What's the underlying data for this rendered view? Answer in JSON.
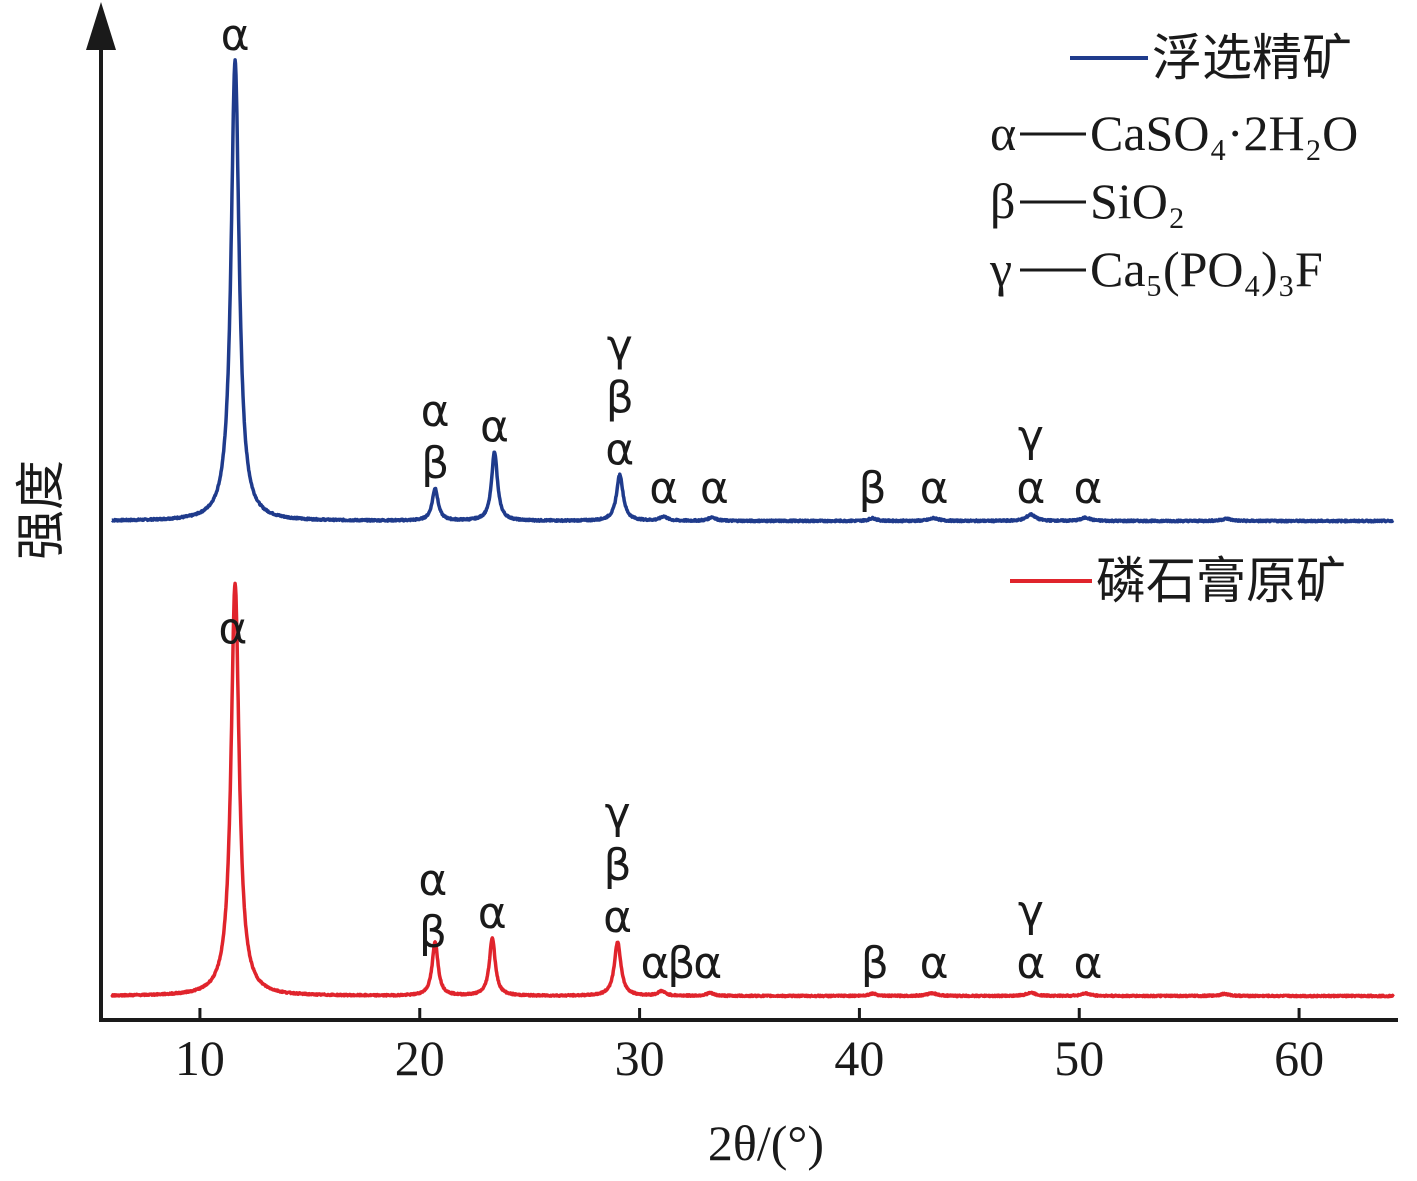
{
  "chart_data": {
    "type": "line",
    "xlabel": "2θ/(°)",
    "ylabel": "强度",
    "xlim": [
      5.5,
      64.5
    ],
    "xticks": [
      10,
      20,
      30,
      40,
      50,
      60
    ],
    "tick_labels": [
      "10",
      "20",
      "30",
      "40",
      "50",
      "60"
    ],
    "colors": {
      "flotation": "#1f3b8c",
      "raw": "#e0242c",
      "axis": "#1a1a1a"
    },
    "series": [
      {
        "name": "浮选精矿",
        "key": "flotation",
        "baseline": 0,
        "peaks": [
          {
            "x": 11.6,
            "y": 100,
            "w": 0.22
          },
          {
            "x": 20.7,
            "y": 7,
            "w": 0.16
          },
          {
            "x": 23.4,
            "y": 15,
            "w": 0.16
          },
          {
            "x": 29.1,
            "y": 10,
            "w": 0.18
          },
          {
            "x": 31.1,
            "y": 0.9,
            "w": 0.2
          },
          {
            "x": 33.3,
            "y": 0.8,
            "w": 0.2
          },
          {
            "x": 40.6,
            "y": 0.6,
            "w": 0.2
          },
          {
            "x": 43.4,
            "y": 0.6,
            "w": 0.25
          },
          {
            "x": 47.8,
            "y": 1.4,
            "w": 0.25
          },
          {
            "x": 50.3,
            "y": 0.7,
            "w": 0.25
          },
          {
            "x": 56.7,
            "y": 0.5,
            "w": 0.25
          }
        ]
      },
      {
        "name": "磷石膏原矿",
        "key": "raw",
        "baseline": 0,
        "peaks": [
          {
            "x": 11.6,
            "y": 100,
            "w": 0.22
          },
          {
            "x": 20.7,
            "y": 13,
            "w": 0.16
          },
          {
            "x": 23.3,
            "y": 14,
            "w": 0.16
          },
          {
            "x": 29.0,
            "y": 13,
            "w": 0.18
          },
          {
            "x": 31.0,
            "y": 1.1,
            "w": 0.2
          },
          {
            "x": 33.2,
            "y": 0.7,
            "w": 0.2
          },
          {
            "x": 40.6,
            "y": 0.6,
            "w": 0.2
          },
          {
            "x": 43.3,
            "y": 0.7,
            "w": 0.25
          },
          {
            "x": 47.8,
            "y": 0.8,
            "w": 0.25
          },
          {
            "x": 50.3,
            "y": 0.6,
            "w": 0.25
          },
          {
            "x": 56.6,
            "y": 0.5,
            "w": 0.25
          }
        ]
      }
    ],
    "annotations": [
      {
        "series": "flotation",
        "x": 11.6,
        "lines": [
          "α"
        ]
      },
      {
        "series": "flotation",
        "x": 20.7,
        "lines": [
          "α",
          "β"
        ]
      },
      {
        "series": "flotation",
        "x": 23.4,
        "lines": [
          "α"
        ]
      },
      {
        "series": "flotation",
        "x": 29.1,
        "lines": [
          "γ",
          "β",
          "α"
        ]
      },
      {
        "series": "flotation",
        "x": 31.1,
        "lines": [
          "α"
        ]
      },
      {
        "series": "flotation",
        "x": 33.4,
        "lines": [
          "α"
        ]
      },
      {
        "series": "flotation",
        "x": 40.6,
        "lines": [
          "β"
        ]
      },
      {
        "series": "flotation",
        "x": 43.4,
        "lines": [
          "α"
        ]
      },
      {
        "series": "flotation",
        "x": 47.8,
        "lines": [
          "γ",
          "α"
        ]
      },
      {
        "series": "flotation",
        "x": 50.4,
        "lines": [
          "α"
        ]
      },
      {
        "series": "raw",
        "x": 11.5,
        "lines": [
          "α"
        ]
      },
      {
        "series": "raw",
        "x": 20.6,
        "lines": [
          "α",
          "β"
        ]
      },
      {
        "series": "raw",
        "x": 23.3,
        "lines": [
          "α"
        ]
      },
      {
        "series": "raw",
        "x": 29.0,
        "lines": [
          "γ",
          "β",
          "α"
        ]
      },
      {
        "series": "raw",
        "x": 30.7,
        "lines": [
          "α"
        ]
      },
      {
        "series": "raw",
        "x": 31.9,
        "lines": [
          "β"
        ]
      },
      {
        "series": "raw",
        "x": 33.1,
        "lines": [
          "α"
        ]
      },
      {
        "series": "raw",
        "x": 40.7,
        "lines": [
          "β"
        ]
      },
      {
        "series": "raw",
        "x": 43.4,
        "lines": [
          "α"
        ]
      },
      {
        "series": "raw",
        "x": 47.8,
        "lines": [
          "γ",
          "α"
        ]
      },
      {
        "series": "raw",
        "x": 50.4,
        "lines": [
          "α"
        ]
      }
    ],
    "phase_key": [
      {
        "symbol": "α",
        "formula": "CaSO₄·2H₂O"
      },
      {
        "symbol": "β",
        "formula": "SiO₂"
      },
      {
        "symbol": "γ",
        "formula": "Ca₅(PO₄)₃F"
      }
    ]
  }
}
